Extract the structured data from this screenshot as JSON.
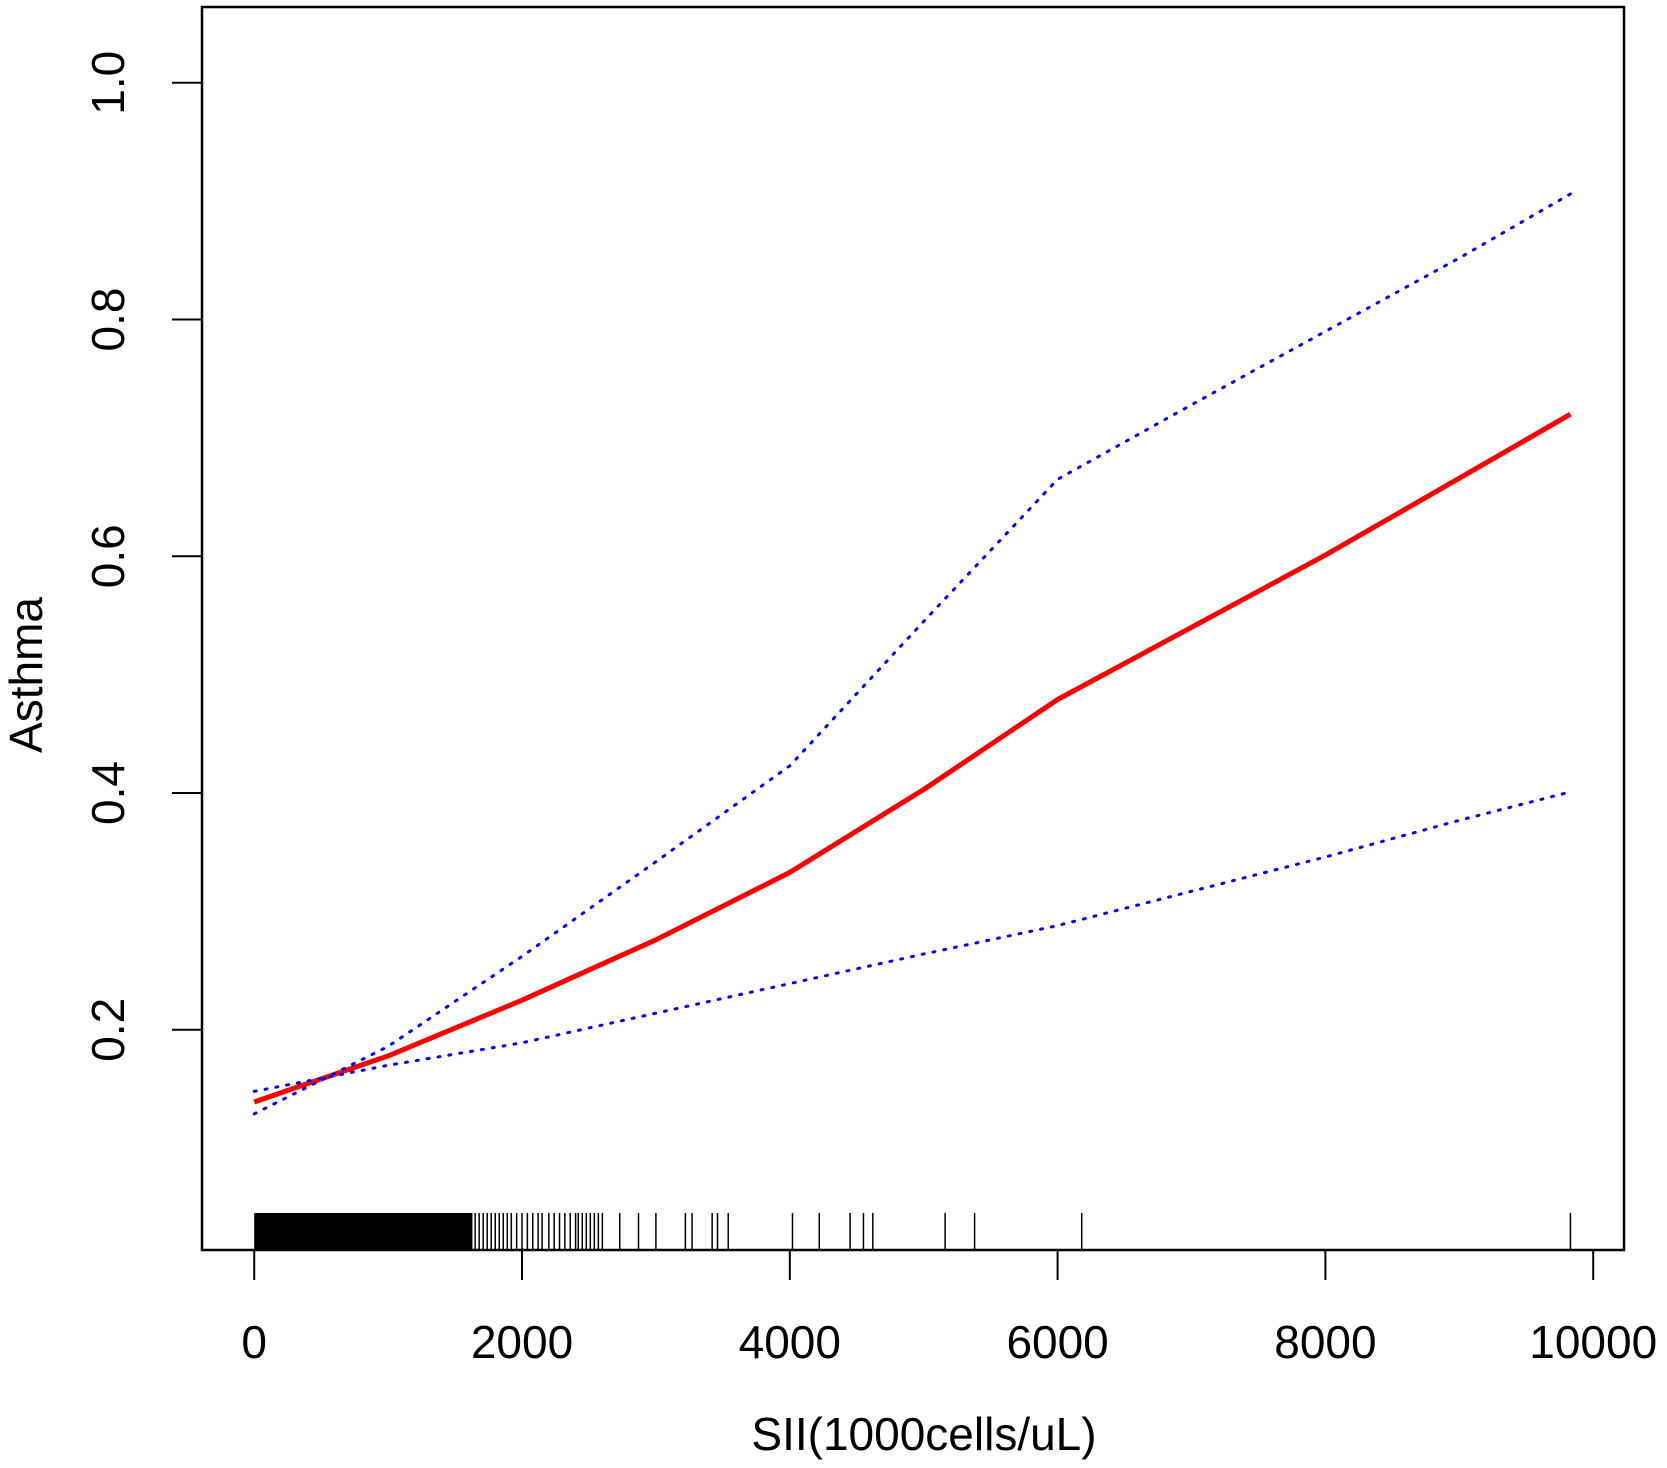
{
  "chart_data": {
    "type": "line",
    "title": "",
    "xlabel": "SII(1000cells/uL)",
    "ylabel": "Asthma",
    "xlim": [
      -390,
      10230
    ],
    "ylim": [
      0.014,
      1.064
    ],
    "xticks": [
      0,
      2000,
      4000,
      6000,
      8000,
      10000
    ],
    "xtick_labels": [
      "0",
      "2000",
      "4000",
      "6000",
      "8000",
      "10000"
    ],
    "yticks": [
      0.2,
      0.4,
      0.6,
      0.8,
      1.0
    ],
    "ytick_labels": [
      "0.2",
      "0.4",
      "0.6",
      "0.8",
      "1.0"
    ],
    "grid": false,
    "legend": "none",
    "series": [
      {
        "style": "solid",
        "color": "#ff0000",
        "x": [
          0,
          1000,
          2000,
          3000,
          4000,
          5000,
          6000,
          7000,
          8000,
          9000,
          9830
        ],
        "y": [
          0.139,
          0.178,
          0.225,
          0.276,
          0.333,
          0.403,
          0.479,
          0.54,
          0.601,
          0.666,
          0.72
        ]
      },
      {
        "style": "dotted",
        "color": "#0000ff",
        "x": [
          0,
          1000,
          2000,
          3000,
          4000,
          5000,
          6000,
          7000,
          8000,
          9000,
          9830
        ],
        "y": [
          0.129,
          0.186,
          0.262,
          0.342,
          0.423,
          0.545,
          0.665,
          0.728,
          0.79,
          0.852,
          0.906
        ]
      },
      {
        "style": "dotted",
        "color": "#0000ff",
        "x": [
          0,
          1000,
          2000,
          3000,
          4000,
          5000,
          6000,
          7000,
          8000,
          9000,
          9830
        ],
        "y": [
          0.148,
          0.17,
          0.189,
          0.214,
          0.239,
          0.264,
          0.288,
          0.317,
          0.346,
          0.377,
          0.401
        ]
      }
    ],
    "rug": [
      1650,
      1680,
      1710,
      1740,
      1770,
      1800,
      1830,
      1860,
      1890,
      1920,
      1960,
      2000,
      2040,
      2080,
      2120,
      2150,
      2200,
      2240,
      2280,
      2320,
      2360,
      2400,
      2420,
      2450,
      2480,
      2510,
      2540,
      2570,
      2600,
      2730,
      2870,
      3000,
      3220,
      3270,
      3420,
      3460,
      3540,
      4020,
      4220,
      4450,
      4550,
      4620,
      5160,
      5380,
      6180,
      9830
    ],
    "rug_dense_range": [
      0,
      1630
    ]
  }
}
